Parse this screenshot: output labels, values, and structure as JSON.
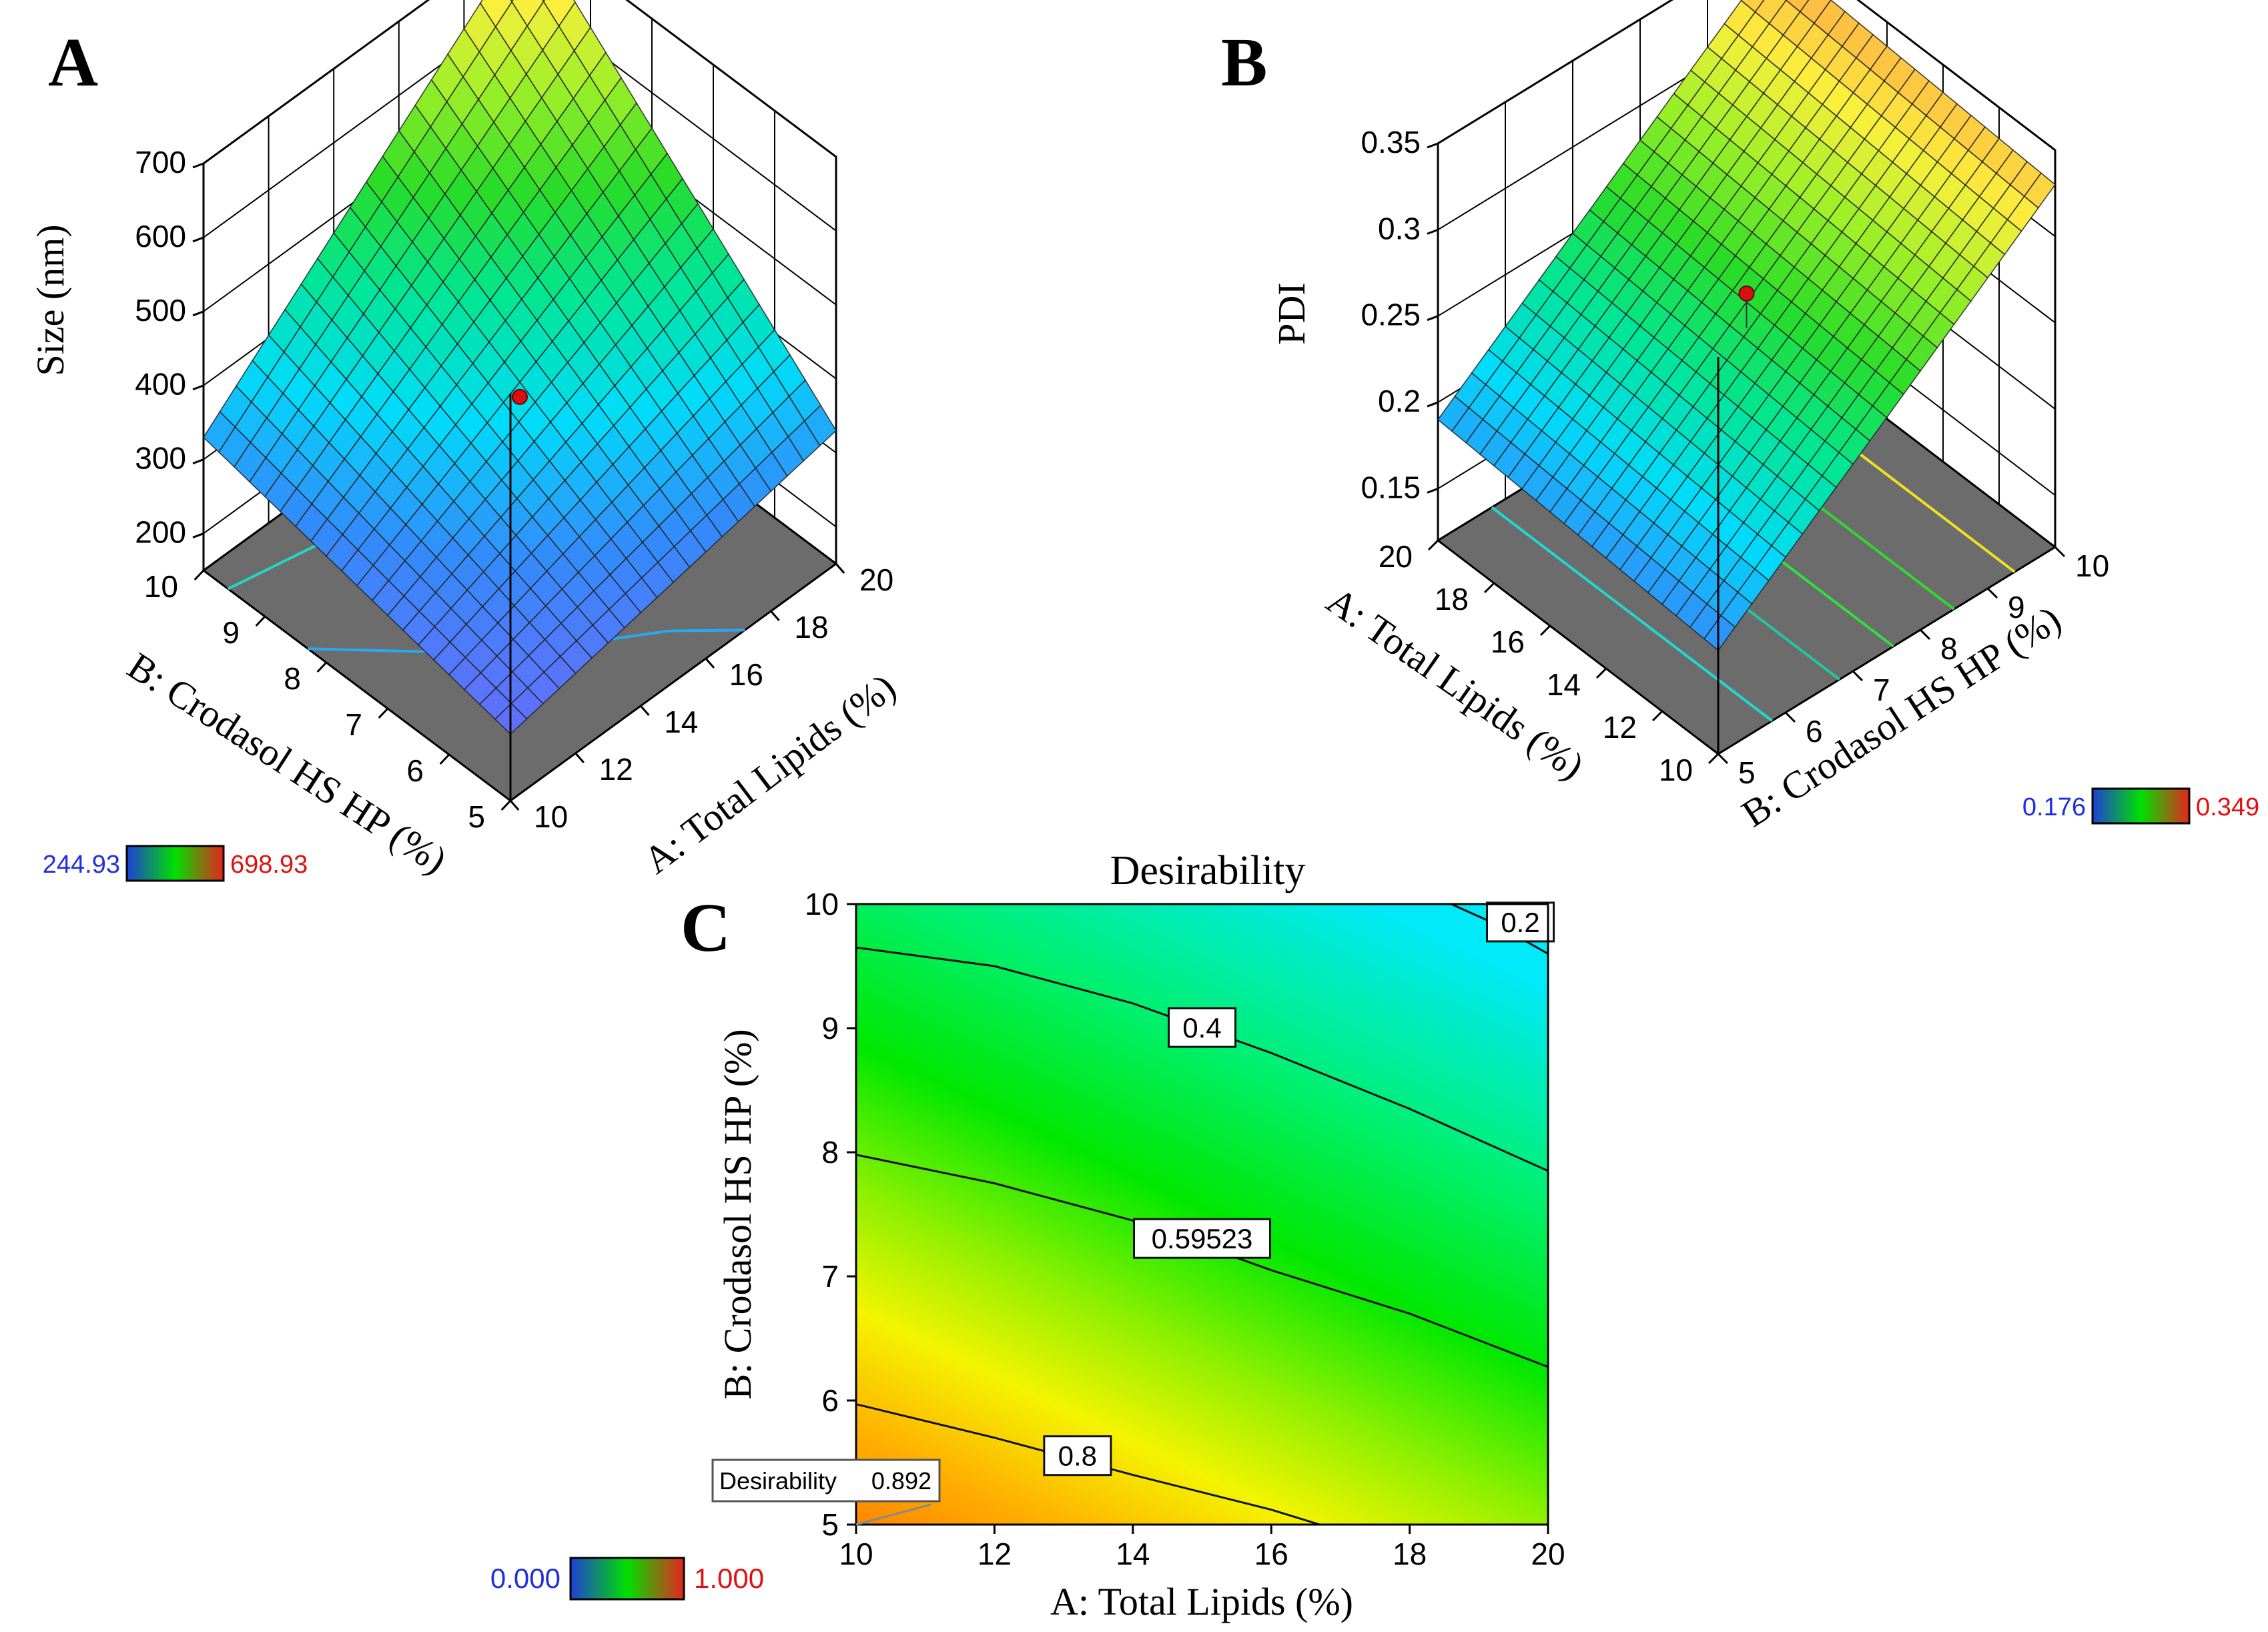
{
  "panels": {
    "A": {
      "letter": "A"
    },
    "B": {
      "letter": "B"
    },
    "C": {
      "letter": "C"
    }
  },
  "chart_data": [
    {
      "type": "surface3d",
      "panel": "A",
      "zlabel": "Size (nm)",
      "xlabel": "A: Total Lipids (%)",
      "ylabel": "B: Crodasol HS HP (%)",
      "x_ticks": [
        "10",
        "12",
        "14",
        "16",
        "18",
        "20"
      ],
      "y_ticks": [
        "5",
        "6",
        "7",
        "8",
        "9",
        "10"
      ],
      "z_ticks": [
        "200",
        "300",
        "400",
        "500",
        "600",
        "700"
      ],
      "xlim": [
        10,
        20
      ],
      "ylim": [
        5,
        10
      ],
      "zlim": [
        150,
        700
      ],
      "corner_values": {
        "x10_y5": 240,
        "x20_y5": 330,
        "x10_y10": 330,
        "x20_y10": 700
      },
      "design_point": {
        "x": 15,
        "y": 7.5,
        "z": 380
      },
      "colorbar": {
        "min_label": "244.93",
        "max_label": "698.93",
        "min_color": "#1f3fd6",
        "max_color": "#e8231d"
      }
    },
    {
      "type": "surface3d",
      "panel": "B",
      "zlabel": "PDI",
      "xlabel": "A: Total Lipids (%)",
      "ylabel": "B: Crodasol HS HP (%)",
      "x_ticks": [
        "10",
        "12",
        "14",
        "16",
        "18",
        "20"
      ],
      "y_ticks": [
        "5",
        "6",
        "7",
        "8",
        "9",
        "10"
      ],
      "z_ticks": [
        "0.15",
        "0.2",
        "0.25",
        "0.3",
        "0.35"
      ],
      "xlim": [
        10,
        20
      ],
      "ylim": [
        5,
        10
      ],
      "zlim": [
        0.12,
        0.35
      ],
      "corner_values": {
        "x10_y5": 0.18,
        "x20_y5": 0.19,
        "x10_y10": 0.33,
        "x20_y10": 0.34
      },
      "design_point": {
        "x": 15,
        "y": 7.5,
        "z": 0.265
      },
      "colorbar": {
        "min_label": "0.176",
        "max_label": "0.349",
        "min_color": "#1f3fd6",
        "max_color": "#e8231d"
      }
    },
    {
      "type": "contour",
      "panel": "C",
      "title": "Desirability",
      "xlabel": "A: Total Lipids (%)",
      "ylabel": "B: Crodasol HS HP (%)",
      "x_ticks": [
        "10",
        "12",
        "14",
        "16",
        "18",
        "20"
      ],
      "y_ticks": [
        "5",
        "6",
        "7",
        "8",
        "9",
        "10"
      ],
      "xlim": [
        10,
        20
      ],
      "ylim": [
        5,
        10
      ],
      "contours": [
        {
          "level": "0.2",
          "points": [
            [
              18.6,
              10
            ],
            [
              19.2,
              9.85
            ],
            [
              20,
              9.6
            ]
          ],
          "label_at": [
            19.6,
            9.85
          ]
        },
        {
          "level": "0.4",
          "points": [
            [
              10,
              9.65
            ],
            [
              12,
              9.5
            ],
            [
              14,
              9.2
            ],
            [
              15,
              9.0
            ],
            [
              16,
              8.8
            ],
            [
              18,
              8.35
            ],
            [
              20,
              7.85
            ]
          ],
          "label_at": [
            15,
            9.0
          ]
        },
        {
          "level": "0.59523",
          "points": [
            [
              10,
              7.98
            ],
            [
              12,
              7.75
            ],
            [
              14,
              7.45
            ],
            [
              15,
              7.25
            ],
            [
              16,
              7.05
            ],
            [
              18,
              6.7
            ],
            [
              20,
              6.27
            ]
          ],
          "label_at": [
            15,
            7.3
          ]
        },
        {
          "level": "0.8",
          "points": [
            [
              10,
              5.97
            ],
            [
              12,
              5.7
            ],
            [
              13,
              5.55
            ],
            [
              14,
              5.4
            ],
            [
              16,
              5.12
            ],
            [
              16.7,
              5.0
            ]
          ],
          "label_at": [
            13.2,
            5.55
          ]
        }
      ],
      "flag": {
        "label": "Desirability",
        "value": "0.892",
        "x": 10,
        "y": 5
      },
      "colorbar": {
        "min_label": "0.000",
        "max_label": "1.000",
        "min_color": "#1f3fd6",
        "max_color": "#e8231d"
      }
    }
  ]
}
